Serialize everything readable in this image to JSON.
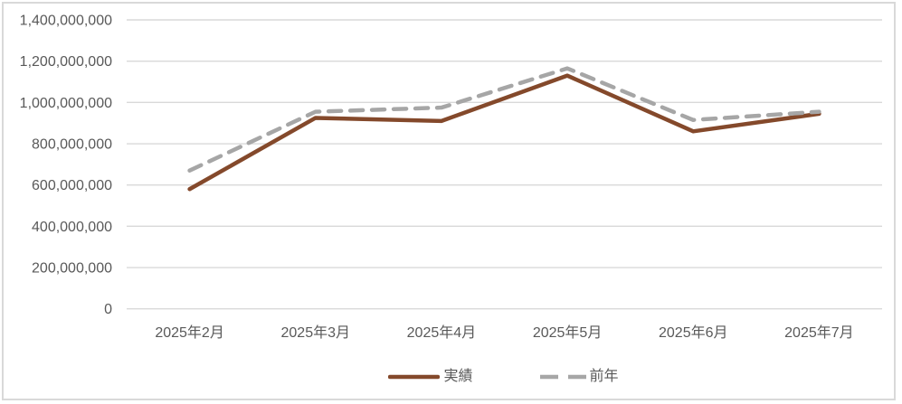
{
  "chart_data": {
    "type": "line",
    "title": "",
    "categories": [
      "2025年2月",
      "2025年3月",
      "2025年4月",
      "2025年5月",
      "2025年6月",
      "2025年7月"
    ],
    "series": [
      {
        "name": "実績",
        "style": "solid",
        "color": "#84492B",
        "values": [
          580000000,
          925000000,
          910000000,
          1130000000,
          860000000,
          945000000
        ]
      },
      {
        "name": "前年",
        "style": "dashed",
        "color": "#A6A6A6",
        "values": [
          670000000,
          955000000,
          975000000,
          1165000000,
          915000000,
          955000000
        ]
      }
    ],
    "xlabel": "",
    "ylabel": "",
    "ylim": [
      0,
      1400000000
    ],
    "ytick_step": 200000000,
    "ytick_labels": [
      "0",
      "200,000,000",
      "400,000,000",
      "600,000,000",
      "800,000,000",
      "1,000,000,000",
      "1,200,000,000",
      "1,400,000,000"
    ],
    "grid": "horizontal",
    "legend_position": "bottom"
  },
  "colors": {
    "background": "#FFFFFF",
    "border": "#D9D9D9",
    "grid": "#D9D9D9",
    "axis_text": "#595959",
    "legend_text": "#595959"
  }
}
